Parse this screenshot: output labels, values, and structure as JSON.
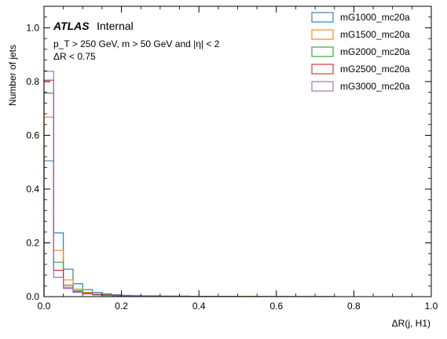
{
  "chart_data": {
    "type": "step-histogram",
    "xlabel": "ΔR(j, H1)",
    "ylabel": "Number of jets",
    "xlim": [
      0,
      1.0
    ],
    "ylim": [
      0,
      1.08
    ],
    "x_ticks": [
      "0.0",
      "0.2",
      "0.4",
      "0.6",
      "0.8",
      "1.0"
    ],
    "x_tick_values": [
      0,
      0.2,
      0.4,
      0.6,
      0.8,
      1.0
    ],
    "y_ticks": [
      "0.0",
      "0.2",
      "0.4",
      "0.6",
      "0.8",
      "1.0"
    ],
    "y_tick_values": [
      0,
      0.2,
      0.4,
      0.6,
      0.8,
      1.0
    ],
    "grid": false,
    "legend_position": "top-right",
    "annotation": {
      "experiment": "ATLAS",
      "status": "Internal",
      "selection_line1": "p_T > 250 GeV, m > 50 GeV and |η| < 2",
      "selection_line2": "ΔR < 0.75"
    },
    "bin_width": 0.025,
    "series": [
      {
        "name": "mG1000_mc20a",
        "color": "#1f77b4",
        "values": [
          0.505,
          0.237,
          0.102,
          0.048,
          0.026,
          0.016,
          0.01,
          0.007,
          0.005,
          0.004,
          0.003,
          0.003,
          0.002,
          0.002,
          0.002,
          0.001,
          0.001,
          0.001,
          0.001,
          0.001,
          0.001,
          0.001,
          0.001,
          0.001,
          0.001,
          0.0005,
          0.0005,
          0.0005,
          0.0005,
          0.0005
        ]
      },
      {
        "name": "mG1500_mc20a",
        "color": "#ff7f0e",
        "values": [
          0.668,
          0.172,
          0.062,
          0.028,
          0.016,
          0.01,
          0.007,
          0.005,
          0.004,
          0.003,
          0.002,
          0.002,
          0.002,
          0.001,
          0.001,
          0.001,
          0.001,
          0.001,
          0.001,
          0.001,
          0.001,
          0.0005,
          0.0005,
          0.0005,
          0.0005,
          0.0005,
          0.0005,
          0.0005
        ]
      },
      {
        "name": "mG2000_mc20a",
        "color": "#2ca02c",
        "values": [
          0.757,
          0.128,
          0.043,
          0.022,
          0.013,
          0.008,
          0.006,
          0.004,
          0.003,
          0.002,
          0.002,
          0.002,
          0.001,
          0.001,
          0.001,
          0.001,
          0.001,
          0.0005,
          0.0005,
          0.0005,
          0.0005,
          0.0005
        ]
      },
      {
        "name": "mG2500_mc20a",
        "color": "#d62728",
        "values": [
          0.805,
          0.098,
          0.035,
          0.018,
          0.011,
          0.007,
          0.005,
          0.004,
          0.003,
          0.002,
          0.002,
          0.001,
          0.001,
          0.001,
          0.001,
          0.001,
          0.0005,
          0.0005,
          0.0005,
          0.0005
        ]
      },
      {
        "name": "mG3000_mc20a",
        "color": "#9467bd",
        "values": [
          0.838,
          0.072,
          0.03,
          0.016,
          0.01,
          0.006,
          0.004,
          0.003,
          0.002,
          0.002,
          0.002,
          0.001,
          0.001,
          0.001,
          0.001,
          0.0005,
          0.0005,
          0.0005,
          0.0005,
          0.0005
        ]
      }
    ]
  }
}
